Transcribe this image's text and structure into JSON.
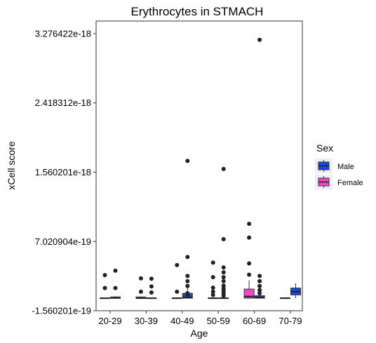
{
  "chart_data": {
    "type": "box",
    "title": "Erythrocytes in STMACH",
    "xlabel": "Age",
    "ylabel": "xCell score",
    "categories": [
      "20-29",
      "30-39",
      "40-49",
      "50-59",
      "60-69",
      "70-79"
    ],
    "y_ticks": [
      {
        "value": -1.560201e-19,
        "label": "-1.560201e-19"
      },
      {
        "value": 7.020904e-19,
        "label": "7.020904e-19"
      },
      {
        "value": 1.560201e-18,
        "label": "1.560201e-18"
      },
      {
        "value": 2.418312e-18,
        "label": "2.418312e-18"
      },
      {
        "value": 3.276422e-18,
        "label": "3.276422e-18"
      }
    ],
    "ylim": [
      -1.560201e-19,
      3.276422e-18
    ],
    "legend": {
      "title": "Sex",
      "placement": "right",
      "entries": [
        {
          "name": "Male",
          "color": "#1549E6"
        },
        {
          "name": "Female",
          "color": "#F546C8"
        }
      ]
    },
    "boxes": [
      {
        "category": "20-29",
        "sex": "Male",
        "q1": 0.0,
        "median": 2e-21,
        "q3": 1.5e-20,
        "whisker_low": 0.0,
        "whisker_high": 2.5e-20,
        "outliers": [
          1.25e-19,
          3.4e-19
        ]
      },
      {
        "category": "20-29",
        "sex": "Female",
        "q1": 0.0,
        "median": 0.0,
        "q3": 0.0,
        "whisker_low": 0.0,
        "whisker_high": 0.0,
        "outliers": [
          1.25e-19,
          2.85e-19
        ]
      },
      {
        "category": "30-39",
        "sex": "Male",
        "q1": 0.0,
        "median": 0.0,
        "q3": 0.0,
        "whisker_low": 0.0,
        "whisker_high": 0.0,
        "outliers": [
          7e-20,
          1.45e-19,
          2.4e-19
        ]
      },
      {
        "category": "30-39",
        "sex": "Female",
        "q1": 0.0,
        "median": 0.0,
        "q3": 1.5e-20,
        "whisker_low": 0.0,
        "whisker_high": 2e-20,
        "outliers": [
          8e-20,
          2.45e-19
        ]
      },
      {
        "category": "40-49",
        "sex": "Male",
        "q1": 0.0,
        "median": 1e-20,
        "q3": 6e-20,
        "whisker_low": 0.0,
        "whisker_high": 1.5e-19,
        "outliers": [
          4e-20,
          6e-20,
          1.5e-19,
          2.1e-19,
          2.75e-19,
          5.1e-19,
          1.7e-18
        ]
      },
      {
        "category": "40-49",
        "sex": "Female",
        "q1": 0.0,
        "median": 0.0,
        "q3": 0.0,
        "whisker_low": 0.0,
        "whisker_high": 0.0,
        "outliers": [
          8e-20,
          4.1e-19
        ]
      },
      {
        "category": "50-59",
        "sex": "Male",
        "q1": 0.0,
        "median": 0.0,
        "q3": 0.0,
        "whisker_low": 0.0,
        "whisker_high": 0.0,
        "outliers": [
          3e-20,
          6e-20,
          9e-20,
          1.2e-19,
          1.55e-19,
          2.1e-19,
          2.6e-19,
          3.2e-19,
          3.8e-19,
          7.3e-19,
          1.6e-18
        ]
      },
      {
        "category": "50-59",
        "sex": "Female",
        "q1": 0.0,
        "median": 0.0,
        "q3": 0.0,
        "whisker_low": 0.0,
        "whisker_high": 0.0,
        "outliers": [
          4e-20,
          8e-20,
          1.3e-19,
          2.6e-19,
          4.4e-19
        ]
      },
      {
        "category": "60-69",
        "sex": "Male",
        "q1": 0.0,
        "median": 1e-20,
        "q3": 3e-20,
        "whisker_low": 0.0,
        "whisker_high": 5e-20,
        "outliers": [
          6e-20,
          1e-19,
          1.5e-19,
          2.1e-19,
          2.75e-19,
          3.2e-18
        ]
      },
      {
        "category": "60-69",
        "sex": "Female",
        "q1": 0.0,
        "median": 2e-20,
        "q3": 1.12e-19,
        "whisker_low": 0.0,
        "whisker_high": 2.2e-19,
        "outliers": [
          2.9e-19,
          4.3e-19,
          7.5e-19,
          9.2e-19
        ]
      },
      {
        "category": "70-79",
        "sex": "Male",
        "q1": 4e-20,
        "median": 8e-20,
        "q3": 1.25e-19,
        "whisker_low": 0.0,
        "whisker_high": 1.85e-19,
        "outliers": []
      },
      {
        "category": "70-79",
        "sex": "Female",
        "q1": 0.0,
        "median": 0.0,
        "q3": 0.0,
        "whisker_low": 0.0,
        "whisker_high": 0.0,
        "outliers": []
      }
    ]
  }
}
